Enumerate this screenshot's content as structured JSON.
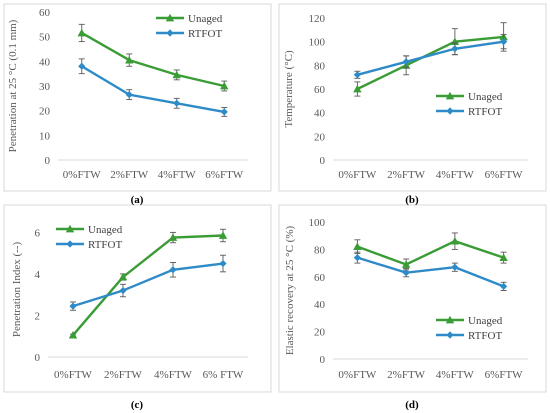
{
  "chart_data": [
    {
      "id": "a",
      "type": "line",
      "caption": "(a)",
      "ylabel": "Penetration at 25 °C (0.1 mm)",
      "categories": [
        "0%FTW",
        "2%FTW",
        "4%FTW",
        "6%FTW"
      ],
      "ylim": [
        0,
        60
      ],
      "yticks": [
        0,
        10,
        20,
        30,
        40,
        50,
        60
      ],
      "legend": "top-right",
      "series": [
        {
          "name": "Unaged",
          "color": "#3a9c35",
          "marker": "triangle",
          "values": [
            51.5,
            40.5,
            34.5,
            30.0
          ],
          "errors": [
            3.5,
            2.5,
            2.0,
            2.0
          ]
        },
        {
          "name": "RTFOT",
          "color": "#2e8bc8",
          "marker": "diamond",
          "values": [
            38.0,
            26.5,
            23.0,
            19.5
          ],
          "errors": [
            3.0,
            2.0,
            2.0,
            1.8
          ]
        }
      ]
    },
    {
      "id": "b",
      "type": "line",
      "caption": "(b)",
      "ylabel": "Temperature (°C)",
      "categories": [
        "0%FTW",
        "2%FTW",
        "4%FTW",
        "6%FTW"
      ],
      "ylim": [
        0,
        120
      ],
      "yticks": [
        0,
        20,
        40,
        60,
        80,
        100,
        120
      ],
      "legend": "bottom-right",
      "series": [
        {
          "name": "Unaged",
          "color": "#3a9c35",
          "marker": "triangle",
          "values": [
            60,
            80,
            100,
            104
          ],
          "errors": [
            6,
            8,
            11,
            12
          ]
        },
        {
          "name": "RTFOT",
          "color": "#2e8bc8",
          "marker": "diamond",
          "values": [
            72,
            83,
            94,
            100
          ],
          "errors": [
            3,
            5,
            5,
            6
          ]
        }
      ]
    },
    {
      "id": "c",
      "type": "line",
      "caption": "(c)",
      "ylabel": "Penetration Index (--)",
      "categories": [
        "0%FTW",
        "2%FTW",
        "4%FTW",
        "6% FTW"
      ],
      "ylim": [
        0,
        6.5
      ],
      "yticks": [
        0,
        2,
        4,
        6
      ],
      "legend": "top-left",
      "series": [
        {
          "name": "Unaged",
          "color": "#3a9c35",
          "marker": "triangle",
          "values": [
            1.05,
            3.85,
            5.75,
            5.85
          ],
          "errors": [
            0.05,
            0.15,
            0.25,
            0.3
          ]
        },
        {
          "name": "RTFOT",
          "color": "#2e8bc8",
          "marker": "diamond",
          "values": [
            2.45,
            3.2,
            4.2,
            4.5
          ],
          "errors": [
            0.2,
            0.3,
            0.35,
            0.4
          ]
        }
      ]
    },
    {
      "id": "d",
      "type": "line",
      "caption": "(d)",
      "ylabel": "Elastic recovery at 25 °C (%)",
      "categories": [
        "0%FTW",
        "2%FTW",
        "4%FTW",
        "6%FTW"
      ],
      "ylim": [
        0,
        100
      ],
      "yticks": [
        0,
        20,
        40,
        60,
        80,
        100
      ],
      "legend": "bottom-right",
      "series": [
        {
          "name": "Unaged",
          "color": "#3a9c35",
          "marker": "triangle",
          "values": [
            82,
            69,
            86,
            74
          ],
          "errors": [
            5,
            4,
            6,
            4
          ]
        },
        {
          "name": "RTFOT",
          "color": "#2e8bc8",
          "marker": "diamond",
          "values": [
            74,
            63,
            67,
            53
          ],
          "errors": [
            4,
            3,
            3,
            3
          ]
        }
      ]
    }
  ]
}
